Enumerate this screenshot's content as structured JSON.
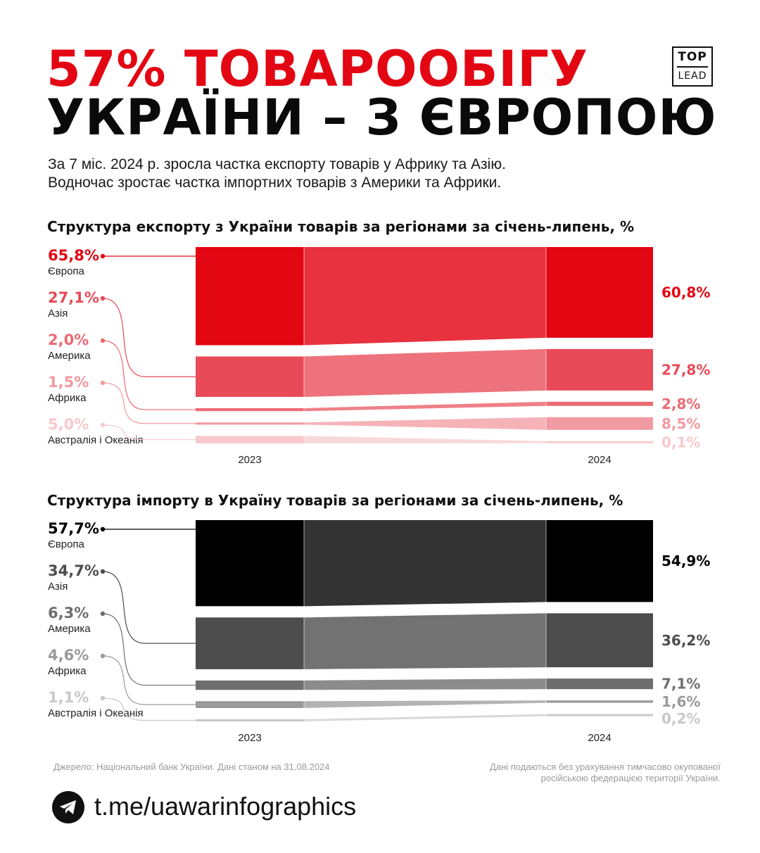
{
  "header": {
    "title_line1": "57% ТОВАРООБІГУ",
    "title_line2": "УКРАЇНИ – З ЄВРОПОЮ",
    "logo_top": "TOP",
    "logo_bottom": "LEAD"
  },
  "subtitle": {
    "line1": "За 7 міс. 2024 р. зросла частка експорту товарів у Африку та Азію.",
    "line2": "Водночас зростає частка імпортних товарів з Америки та Африки."
  },
  "chart_data": [
    {
      "type": "bar",
      "id": "export",
      "title": "Структура експорту з України товарів за регіонами за січень-липень, %",
      "categories": [
        "2023",
        "2024"
      ],
      "series": [
        {
          "name": "Європа",
          "values": [
            65.8,
            60.8
          ],
          "labels": [
            "65,8%",
            "60,8%"
          ],
          "color": "#e30613",
          "band_color": "#e8323f"
        },
        {
          "name": "Азія",
          "values": [
            27.1,
            27.8
          ],
          "labels": [
            "27,1%",
            "27,8%"
          ],
          "color": "#e84a58",
          "band_color": "#ee727b"
        },
        {
          "name": "Америка",
          "values": [
            2.0,
            2.8
          ],
          "labels": [
            "2,0%",
            "2,8%"
          ],
          "color": "#ec6b74",
          "band_color": "#ef8087"
        },
        {
          "name": "Африка",
          "values": [
            1.5,
            8.5
          ],
          "labels": [
            "1,5%",
            "8,5%"
          ],
          "color": "#f29aa1",
          "band_color": "#f5b3b8"
        },
        {
          "name": "Австралія і Океанія",
          "values": [
            5.0,
            0.1
          ],
          "labels": [
            "5,0%",
            "0,1%"
          ],
          "color": "#f7c9cc",
          "band_color": "#f9d8da"
        }
      ]
    },
    {
      "type": "bar",
      "id": "import",
      "title": "Структура імпорту в Україну товарів за регіонами за січень-липень, %",
      "categories": [
        "2023",
        "2024"
      ],
      "series": [
        {
          "name": "Європа",
          "values": [
            57.7,
            54.9
          ],
          "labels": [
            "57,7%",
            "54,9%"
          ],
          "color": "#000000",
          "band_color": "#333333"
        },
        {
          "name": "Азія",
          "values": [
            34.7,
            36.2
          ],
          "labels": [
            "34,7%",
            "36,2%"
          ],
          "color": "#4d4d4d",
          "band_color": "#727272"
        },
        {
          "name": "Америка",
          "values": [
            6.3,
            7.1
          ],
          "labels": [
            "6,3%",
            "7,1%"
          ],
          "color": "#6e6e6e",
          "band_color": "#8c8c8c"
        },
        {
          "name": "Африка",
          "values": [
            4.6,
            1.6
          ],
          "labels": [
            "4,6%",
            "1,6%"
          ],
          "color": "#9a9a9a",
          "band_color": "#b3b3b3"
        },
        {
          "name": "Австралія і Океанія",
          "values": [
            1.1,
            0.2
          ],
          "labels": [
            "1,1%",
            "0,2%"
          ],
          "color": "#c8c8c8",
          "band_color": "#d8d8d8"
        }
      ]
    }
  ],
  "footer": {
    "source": "Джерело: Національний банк України. Дані станом на 31.08.2024",
    "note_line1": "Дані подаються без урахування тимчасово окупованої",
    "note_line2": "російською федерацією території України.",
    "link": "t.me/uawarinfographics"
  },
  "icons": {
    "telegram": "telegram-icon"
  }
}
